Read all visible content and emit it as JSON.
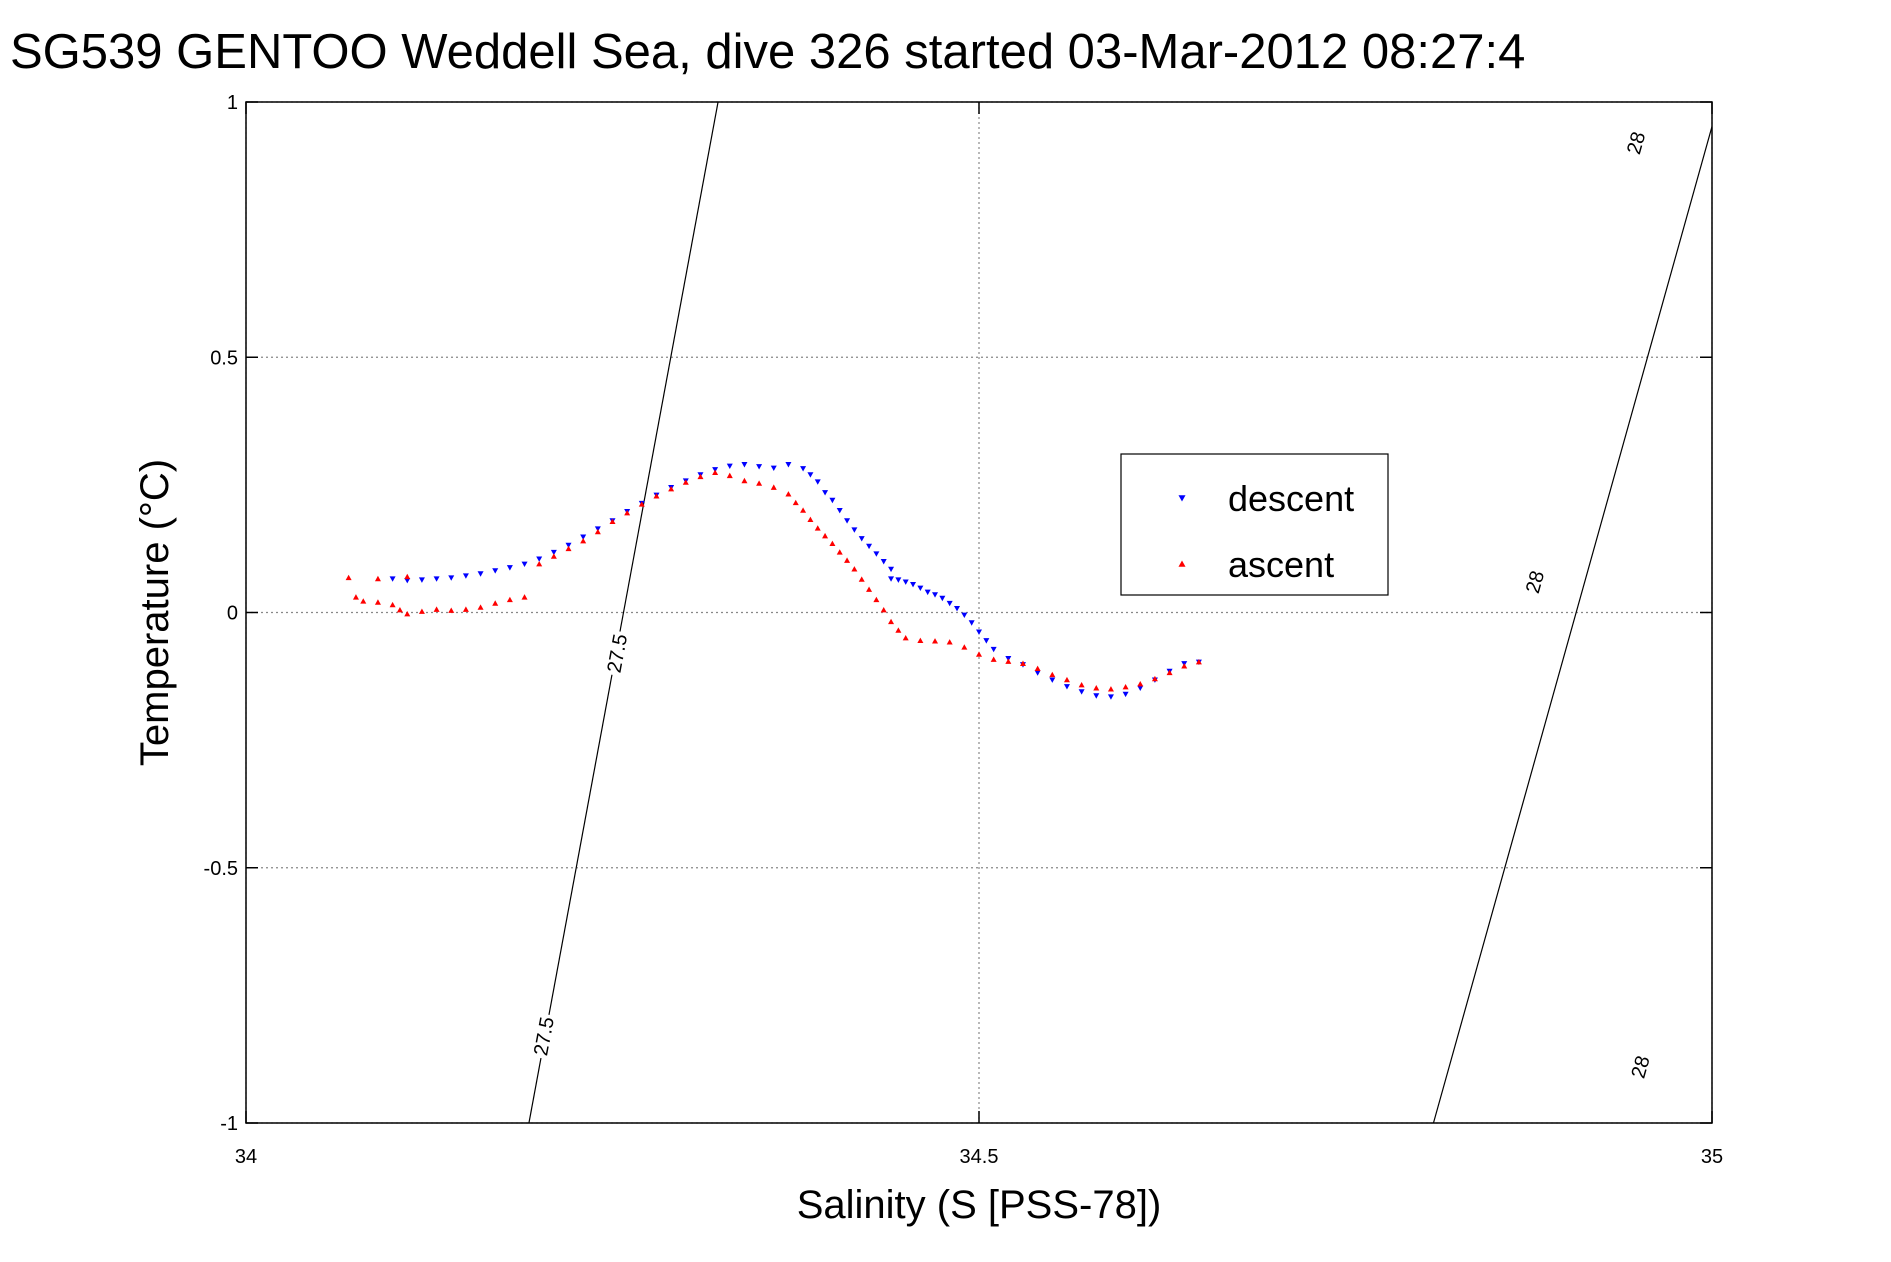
{
  "chart_data": {
    "type": "scatter",
    "title": "SG539 GENTOO Weddell Sea, dive 326 started 03-Mar-2012 08:27:4",
    "xlabel": "Salinity (S [PSS-78])",
    "ylabel": "Temperature (°C)",
    "xlim": [
      34,
      35
    ],
    "ylim": [
      -1,
      1
    ],
    "x_ticks": [
      34,
      34.5,
      35
    ],
    "x_tick_labels": [
      "34",
      "34.5",
      "35"
    ],
    "y_ticks": [
      -1,
      -0.5,
      0,
      0.5,
      1
    ],
    "y_tick_labels": [
      "-1",
      "-0.5",
      "0",
      "0.5",
      "1"
    ],
    "grid": true,
    "legend_position": "right-center",
    "colors": {
      "descent": "#0000ff",
      "ascent": "#ff0000",
      "axes": "#000000",
      "grid": "#888888"
    },
    "contours": [
      {
        "label": "27.5",
        "points": [
          [
            34.193,
            -1
          ],
          [
            34.322,
            1
          ]
        ],
        "label_points": [
          [
            34.253,
            -0.08
          ],
          [
            34.203,
            -0.83
          ]
        ]
      },
      {
        "label": "28",
        "points": [
          [
            34.81,
            -1
          ],
          [
            35.0,
            0.952
          ]
        ],
        "label_points": [
          [
            34.951,
            -0.89
          ],
          [
            34.879,
            0.06
          ],
          [
            34.948,
            0.92
          ]
        ]
      }
    ],
    "series": [
      {
        "name": "descent",
        "marker": "triangle-down",
        "points": [
          [
            34.1,
            0.066
          ],
          [
            34.11,
            0.063
          ],
          [
            34.12,
            0.064
          ],
          [
            34.13,
            0.066
          ],
          [
            34.14,
            0.068
          ],
          [
            34.15,
            0.072
          ],
          [
            34.16,
            0.076
          ],
          [
            34.17,
            0.082
          ],
          [
            34.18,
            0.088
          ],
          [
            34.19,
            0.095
          ],
          [
            34.2,
            0.105
          ],
          [
            34.21,
            0.118
          ],
          [
            34.22,
            0.132
          ],
          [
            34.23,
            0.148
          ],
          [
            34.24,
            0.164
          ],
          [
            34.25,
            0.18
          ],
          [
            34.26,
            0.198
          ],
          [
            34.27,
            0.214
          ],
          [
            34.28,
            0.23
          ],
          [
            34.29,
            0.245
          ],
          [
            34.3,
            0.258
          ],
          [
            34.31,
            0.27
          ],
          [
            34.32,
            0.28
          ],
          [
            34.33,
            0.287
          ],
          [
            34.34,
            0.29
          ],
          [
            34.35,
            0.286
          ],
          [
            34.36,
            0.283
          ],
          [
            34.37,
            0.29
          ],
          [
            34.38,
            0.282
          ],
          [
            34.385,
            0.27
          ],
          [
            34.39,
            0.256
          ],
          [
            34.395,
            0.235
          ],
          [
            34.4,
            0.22
          ],
          [
            34.405,
            0.2
          ],
          [
            34.41,
            0.18
          ],
          [
            34.415,
            0.162
          ],
          [
            34.42,
            0.145
          ],
          [
            34.425,
            0.13
          ],
          [
            34.43,
            0.115
          ],
          [
            34.435,
            0.1
          ],
          [
            34.44,
            0.085
          ],
          [
            34.44,
            0.066
          ],
          [
            34.445,
            0.064
          ],
          [
            34.45,
            0.06
          ],
          [
            34.455,
            0.055
          ],
          [
            34.46,
            0.048
          ],
          [
            34.465,
            0.04
          ],
          [
            34.47,
            0.035
          ],
          [
            34.475,
            0.028
          ],
          [
            34.48,
            0.018
          ],
          [
            34.485,
            0.008
          ],
          [
            34.49,
            -0.005
          ],
          [
            34.495,
            -0.02
          ],
          [
            34.5,
            -0.038
          ],
          [
            34.505,
            -0.055
          ],
          [
            34.51,
            -0.072
          ],
          [
            34.52,
            -0.09
          ],
          [
            34.53,
            -0.102
          ],
          [
            34.54,
            -0.118
          ],
          [
            34.55,
            -0.132
          ],
          [
            34.56,
            -0.145
          ],
          [
            34.57,
            -0.155
          ],
          [
            34.58,
            -0.163
          ],
          [
            34.59,
            -0.165
          ],
          [
            34.6,
            -0.16
          ],
          [
            34.61,
            -0.148
          ],
          [
            34.62,
            -0.132
          ],
          [
            34.63,
            -0.115
          ],
          [
            34.64,
            -0.1
          ],
          [
            34.65,
            -0.097
          ]
        ]
      },
      {
        "name": "ascent",
        "marker": "triangle-up",
        "points": [
          [
            34.07,
            0.068
          ],
          [
            34.09,
            0.066
          ],
          [
            34.11,
            0.07
          ],
          [
            34.075,
            0.03
          ],
          [
            34.08,
            0.022
          ],
          [
            34.09,
            0.02
          ],
          [
            34.1,
            0.015
          ],
          [
            34.105,
            0.005
          ],
          [
            34.11,
            -0.003
          ],
          [
            34.12,
            0.002
          ],
          [
            34.13,
            0.006
          ],
          [
            34.14,
            0.004
          ],
          [
            34.15,
            0.006
          ],
          [
            34.16,
            0.01
          ],
          [
            34.17,
            0.018
          ],
          [
            34.18,
            0.025
          ],
          [
            34.19,
            0.03
          ],
          [
            34.2,
            0.095
          ],
          [
            34.21,
            0.11
          ],
          [
            34.22,
            0.125
          ],
          [
            34.23,
            0.14
          ],
          [
            34.24,
            0.158
          ],
          [
            34.25,
            0.178
          ],
          [
            34.26,
            0.195
          ],
          [
            34.27,
            0.212
          ],
          [
            34.28,
            0.228
          ],
          [
            34.29,
            0.242
          ],
          [
            34.3,
            0.255
          ],
          [
            34.31,
            0.266
          ],
          [
            34.32,
            0.274
          ],
          [
            34.33,
            0.268
          ],
          [
            34.34,
            0.258
          ],
          [
            34.35,
            0.253
          ],
          [
            34.36,
            0.245
          ],
          [
            34.37,
            0.232
          ],
          [
            34.375,
            0.215
          ],
          [
            34.38,
            0.2
          ],
          [
            34.385,
            0.182
          ],
          [
            34.39,
            0.165
          ],
          [
            34.395,
            0.15
          ],
          [
            34.4,
            0.135
          ],
          [
            34.405,
            0.118
          ],
          [
            34.41,
            0.102
          ],
          [
            34.415,
            0.085
          ],
          [
            34.42,
            0.065
          ],
          [
            34.425,
            0.045
          ],
          [
            34.43,
            0.025
          ],
          [
            34.435,
            0.005
          ],
          [
            34.44,
            -0.018
          ],
          [
            34.445,
            -0.035
          ],
          [
            34.45,
            -0.05
          ],
          [
            34.46,
            -0.055
          ],
          [
            34.47,
            -0.056
          ],
          [
            34.48,
            -0.058
          ],
          [
            34.49,
            -0.068
          ],
          [
            34.5,
            -0.082
          ],
          [
            34.51,
            -0.092
          ],
          [
            34.52,
            -0.096
          ],
          [
            34.53,
            -0.1
          ],
          [
            34.54,
            -0.11
          ],
          [
            34.55,
            -0.122
          ],
          [
            34.56,
            -0.132
          ],
          [
            34.57,
            -0.142
          ],
          [
            34.58,
            -0.148
          ],
          [
            34.59,
            -0.15
          ],
          [
            34.6,
            -0.146
          ],
          [
            34.61,
            -0.14
          ],
          [
            34.62,
            -0.13
          ],
          [
            34.63,
            -0.118
          ],
          [
            34.64,
            -0.105
          ],
          [
            34.65,
            -0.097
          ]
        ]
      }
    ]
  }
}
